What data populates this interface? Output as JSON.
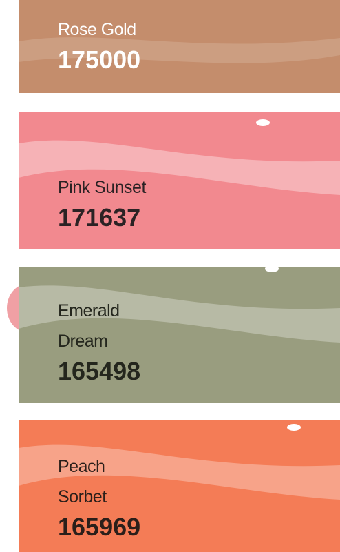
{
  "items": [
    {
      "name": "Rose Gold",
      "value": 175000,
      "color": "#c48d6c",
      "text_color": "#ffffff"
    },
    {
      "name": "Pink Sunset",
      "value": 171637,
      "color": "#f2898f",
      "text_color": "#2b2224"
    },
    {
      "name": "Emerald Dream",
      "value": 165498,
      "color": "#999d7f",
      "text_color": "#24261d"
    },
    {
      "name": "Peach Sorbet",
      "value": 165969,
      "color": "#f47c56",
      "text_color": "#2b1f1a"
    }
  ]
}
